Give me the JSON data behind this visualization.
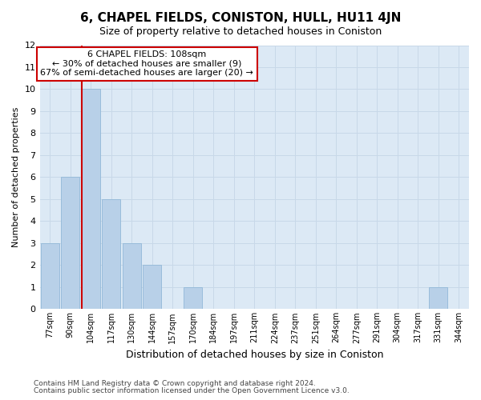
{
  "title": "6, CHAPEL FIELDS, CONISTON, HULL, HU11 4JN",
  "subtitle": "Size of property relative to detached houses in Coniston",
  "xlabel": "Distribution of detached houses by size in Coniston",
  "ylabel": "Number of detached properties",
  "categories": [
    "77sqm",
    "90sqm",
    "104sqm",
    "117sqm",
    "130sqm",
    "144sqm",
    "157sqm",
    "170sqm",
    "184sqm",
    "197sqm",
    "211sqm",
    "224sqm",
    "237sqm",
    "251sqm",
    "264sqm",
    "277sqm",
    "291sqm",
    "304sqm",
    "317sqm",
    "331sqm",
    "344sqm"
  ],
  "values": [
    3,
    6,
    10,
    5,
    3,
    2,
    0,
    1,
    0,
    0,
    0,
    0,
    0,
    0,
    0,
    0,
    0,
    0,
    0,
    1,
    0
  ],
  "bar_color": "#b8d0e8",
  "bar_edge_color": "#92b8d8",
  "vline_index": 2,
  "vline_color": "#cc0000",
  "annotation_line1": "6 CHAPEL FIELDS: 108sqm",
  "annotation_line2": "← 30% of detached houses are smaller (9)",
  "annotation_line3": "67% of semi-detached houses are larger (20) →",
  "annotation_box_color": "#ffffff",
  "annotation_box_edge_color": "#cc0000",
  "ylim": [
    0,
    12
  ],
  "yticks": [
    0,
    1,
    2,
    3,
    4,
    5,
    6,
    7,
    8,
    9,
    10,
    11,
    12
  ],
  "grid_color": "#c8d8e8",
  "bg_color": "#dce9f5",
  "fig_bg_color": "#ffffff",
  "footnote1": "Contains HM Land Registry data © Crown copyright and database right 2024.",
  "footnote2": "Contains public sector information licensed under the Open Government Licence v3.0.",
  "title_fontsize": 11,
  "subtitle_fontsize": 9,
  "xlabel_fontsize": 9,
  "ylabel_fontsize": 8,
  "footnote_fontsize": 6.5
}
